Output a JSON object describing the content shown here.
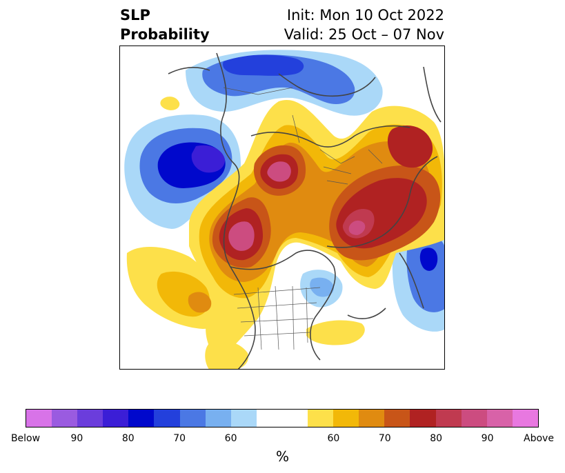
{
  "title": {
    "left_line1": "SLP",
    "left_line2": "Probability",
    "right_line1": "Init: Mon 10 Oct 2022",
    "right_line2": "Valid: 25 Oct – 07 Nov"
  },
  "colorbar": {
    "colors": [
      "#d873e8",
      "#9a5be0",
      "#6b3ddc",
      "#3b1ed6",
      "#0008cc",
      "#2340dc",
      "#4b78e4",
      "#78b0f0",
      "#aad8f8",
      "#ffffff",
      "#ffffff",
      "#fde04a",
      "#f2b808",
      "#e08b10",
      "#c85518",
      "#b02222",
      "#c03a50",
      "#cc4c80",
      "#d862a8",
      "#e878e0"
    ],
    "tick_labels": [
      "Below",
      "90",
      "80",
      "70",
      "60",
      "60",
      "70",
      "80",
      "90",
      "Above"
    ],
    "unit": "%"
  },
  "map": {
    "description_icon": "north-polar-stereographic-map",
    "anomaly_colors": {
      "below_strong": "#0008cc",
      "below_mid": "#4b78e4",
      "below_weak": "#aad8f8",
      "above_weak": "#fde04a",
      "above_mid": "#e08b10",
      "above_strong": "#b02222",
      "above_max": "#cc4c80"
    }
  }
}
